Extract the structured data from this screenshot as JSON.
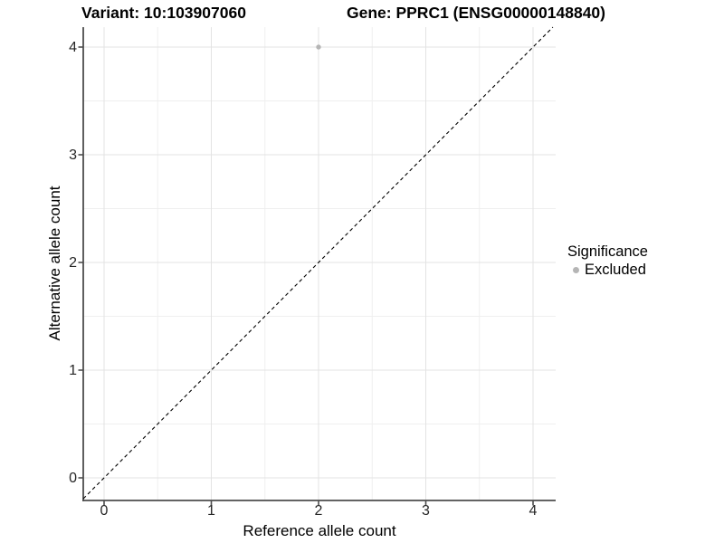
{
  "titles": {
    "variant": "Variant: 10:103907060",
    "gene": "Gene: PPRC1 (ENSG00000148840)"
  },
  "chart_data": {
    "type": "scatter",
    "title_left": "Variant: 10:103907060",
    "title_right": "Gene: PPRC1 (ENSG00000148840)",
    "xlabel": "Reference allele count",
    "ylabel": "Alternative allele count",
    "xlim": [
      -0.2,
      4.2
    ],
    "ylim": [
      -0.2,
      4.2
    ],
    "xticks": [
      0,
      1,
      2,
      3,
      4
    ],
    "yticks": [
      0,
      1,
      2,
      3,
      4
    ],
    "minor_gridlines": [
      0.5,
      1.5,
      2.5,
      3.5
    ],
    "grid": "major and minor, light gray on white",
    "series": [
      {
        "name": "Excluded",
        "color": "#b5b5b5",
        "points": [
          {
            "x": 2,
            "y": 4
          }
        ]
      }
    ],
    "reference_line": {
      "slope": 1,
      "intercept": 0,
      "style": "dashed",
      "color": "#000000"
    },
    "legend_position": "right"
  },
  "legend": {
    "title": "Significance",
    "entries": [
      {
        "label": "Excluded",
        "color": "#b5b5b5"
      }
    ]
  },
  "colors": {
    "background": "#ffffff",
    "axis_line": "#4d4d4d",
    "tick_text": "#262626",
    "grid_major": "#e3e3e3",
    "grid_minor": "#efefef",
    "point": "#b5b5b5",
    "dashed_line": "#000000"
  }
}
